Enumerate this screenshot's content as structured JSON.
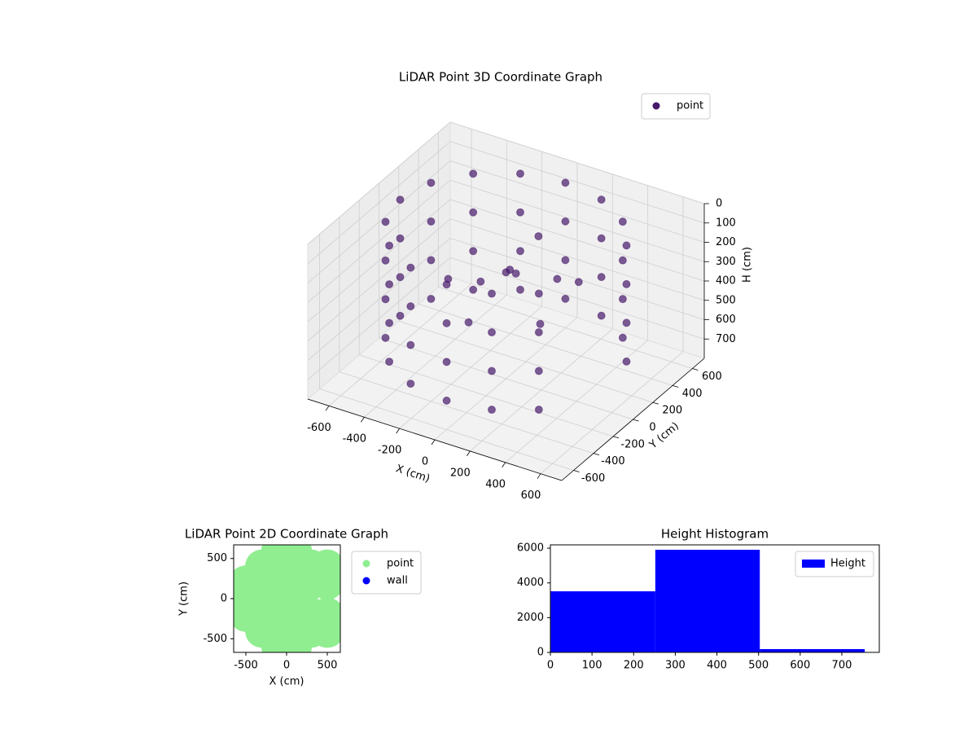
{
  "chart_data": [
    {
      "type": "scatter3d",
      "title": "LiDAR Point 3D Coordinate Graph",
      "x_label": "X (cm)",
      "y_label": "Y (cm)",
      "z_label": "H (cm)",
      "xlim": [
        -720,
        720
      ],
      "ylim": [
        -720,
        720
      ],
      "zlim": [
        0,
        800
      ],
      "z_inverted": true,
      "xticks": [
        -600,
        -400,
        -200,
        0,
        200,
        400,
        600
      ],
      "yticks": [
        -600,
        -400,
        -200,
        0,
        200,
        400,
        600
      ],
      "zticks": [
        0,
        100,
        200,
        300,
        400,
        500,
        600,
        700
      ],
      "legend": "upper right",
      "series": [
        {
          "name": "point",
          "color": "#46186a",
          "x": [
            554,
            554,
            554,
            554,
            424,
            424,
            424,
            424,
            230,
            230,
            230,
            230,
            0,
            0,
            0,
            0,
            -230,
            -230,
            -230,
            -230,
            -424,
            -424,
            -424,
            -424,
            -554,
            -554,
            -554,
            -554,
            -600,
            -600,
            -600,
            -600,
            -554,
            -554,
            -554,
            -554,
            -424,
            -424,
            -424,
            -424,
            -230,
            -230,
            -230,
            -230,
            0,
            0,
            0,
            0,
            230,
            230,
            230,
            230,
            424,
            424,
            424,
            424,
            0,
            50,
            -200,
            150,
            -100,
            250,
            -300,
            100,
            0,
            300
          ],
          "y": [
            230,
            230,
            230,
            230,
            424,
            424,
            424,
            424,
            554,
            554,
            554,
            554,
            600,
            600,
            600,
            600,
            554,
            554,
            554,
            554,
            424,
            424,
            424,
            424,
            230,
            230,
            230,
            230,
            0,
            0,
            0,
            0,
            -230,
            -230,
            -230,
            -230,
            -424,
            -424,
            -424,
            -424,
            -554,
            -554,
            -554,
            -554,
            -600,
            -600,
            -600,
            -600,
            -554,
            -554,
            -554,
            -554,
            -424,
            -424,
            -424,
            -424,
            100,
            -50,
            100,
            250,
            -200,
            -100,
            -50,
            150,
            0,
            200
          ],
          "z": [
            50,
            250,
            450,
            650,
            50,
            250,
            450,
            650,
            50,
            250,
            450,
            650,
            50,
            250,
            450,
            650,
            50,
            250,
            450,
            650,
            50,
            250,
            450,
            650,
            50,
            250,
            450,
            650,
            50,
            250,
            450,
            650,
            50,
            250,
            450,
            650,
            50,
            250,
            450,
            650,
            50,
            250,
            450,
            650,
            50,
            250,
            450,
            650,
            50,
            250,
            450,
            650,
            50,
            250,
            450,
            650,
            300,
            200,
            400,
            350,
            450,
            400,
            350,
            100,
            250,
            300
          ]
        }
      ]
    },
    {
      "type": "scatter",
      "title": "LiDAR Point 2D Coordinate Graph",
      "x_label": "X (cm)",
      "y_label": "Y (cm)",
      "xlim": [
        -650,
        660
      ],
      "ylim": [
        -670,
        670
      ],
      "xticks": [
        -500,
        0,
        500
      ],
      "yticks": [
        -500,
        0,
        500
      ],
      "legend": "outside right",
      "series": [
        {
          "name": "point",
          "color": "#90ee90",
          "x": [
            -100,
            100,
            -300,
            -100,
            100,
            300,
            500,
            -500,
            -300,
            -100,
            100,
            300,
            500,
            -500,
            -300,
            -100,
            100,
            -500,
            -300,
            -100,
            100,
            300,
            500,
            -300,
            -100,
            100,
            300,
            500,
            -100,
            100
          ],
          "y": [
            600,
            600,
            400,
            400,
            400,
            400,
            400,
            200,
            200,
            200,
            200,
            200,
            200,
            0,
            0,
            0,
            0,
            -200,
            -200,
            -200,
            -200,
            -200,
            -200,
            -400,
            -400,
            -400,
            -400,
            -400,
            -600,
            -600
          ]
        },
        {
          "name": "wall",
          "color": "#0000ff",
          "x": [],
          "y": []
        }
      ]
    },
    {
      "type": "histogram",
      "title": "Height Histogram",
      "xlim": [
        0,
        790
      ],
      "ylim": [
        0,
        6190
      ],
      "xticks": [
        0,
        100,
        200,
        300,
        400,
        500,
        600,
        700
      ],
      "yticks": [
        0,
        2000,
        4000,
        6000
      ],
      "legend": "upper right",
      "bins": [
        0,
        252,
        503,
        755
      ],
      "series": [
        {
          "name": "Height",
          "color": "#0000ff",
          "values": [
            3516,
            5907,
            188
          ]
        }
      ]
    }
  ]
}
